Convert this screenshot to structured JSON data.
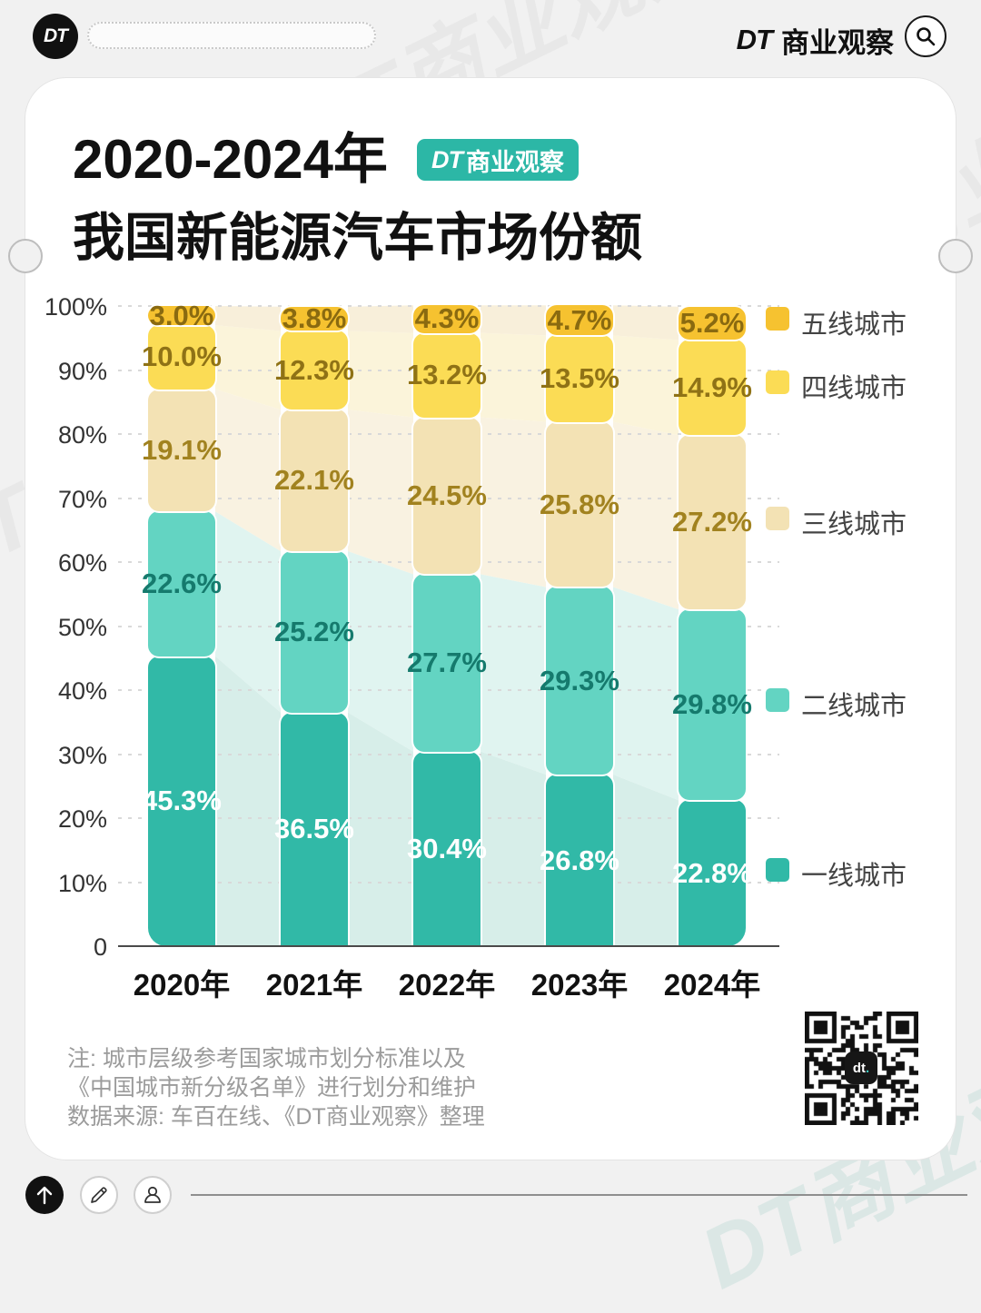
{
  "topbar": {
    "logo": "DT",
    "brand_dt": "DT",
    "brand_name": "商业观察"
  },
  "header": {
    "title_line1": "2020-2024年",
    "title_line2": "我国新能源汽车市场份额",
    "badge_dt": "DT",
    "badge_rest": "商业观察"
  },
  "chart_data": {
    "type": "bar",
    "stacked": true,
    "title": "2020-2024年我国新能源汽车市场份额",
    "categories": [
      "2020年",
      "2021年",
      "2022年",
      "2023年",
      "2024年"
    ],
    "series": [
      {
        "name": "一线城市",
        "values": [
          45.3,
          36.5,
          30.4,
          26.8,
          22.8
        ],
        "color": "#31b9a7",
        "flow_color": "#d7eee9",
        "label_color": "#ffffff"
      },
      {
        "name": "二线城市",
        "values": [
          22.6,
          25.2,
          27.7,
          29.3,
          29.8
        ],
        "color": "#63d4c2",
        "flow_color": "#e0f4f0",
        "label_color": "#157a6d"
      },
      {
        "name": "三线城市",
        "values": [
          19.1,
          22.1,
          24.5,
          25.8,
          27.2
        ],
        "color": "#f3e2b4",
        "flow_color": "#f9f2e1",
        "label_color": "#a1821f"
      },
      {
        "name": "四线城市",
        "values": [
          10.0,
          12.3,
          13.2,
          13.5,
          14.9
        ],
        "color": "#fbdc55",
        "flow_color": "#fbf4da",
        "label_color": "#8f7216"
      },
      {
        "name": "五线城市",
        "values": [
          3.0,
          3.8,
          4.3,
          4.7,
          5.2
        ],
        "color": "#f6c230",
        "flow_color": "#f8efda",
        "label_color": "#8a6a10"
      }
    ],
    "ylim": [
      0,
      100
    ],
    "yticks": [
      "100%",
      "90%",
      "80%",
      "70%",
      "60%",
      "50%",
      "40%",
      "30%",
      "20%",
      "10%",
      "0"
    ],
    "grid": "dashed-horizontal",
    "legend_position": "right"
  },
  "notes": {
    "line1": "注: 城市层级参考国家城市划分标准以及",
    "line2": "《中国城市新分级名单》进行划分和维护",
    "line3": "数据来源: 车百在线、《DT商业观察》整理"
  },
  "qr": {
    "label_dt": "dt",
    "label_dot": "."
  },
  "watermark": "DT商业观察"
}
